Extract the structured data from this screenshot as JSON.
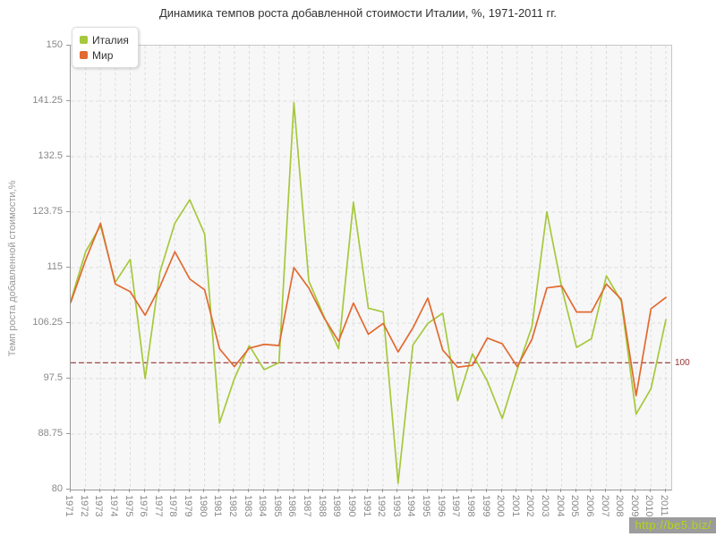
{
  "watermark": "http://be5.biz/",
  "chart_data": {
    "type": "line",
    "title": "Динамика темпов роста добавленной стоимости Италии, %, 1971-2011 гг.",
    "ylabel": "Темп роста добавленной стоимости,%",
    "xlabel": "",
    "ylim": [
      80,
      150
    ],
    "yticks": [
      80,
      88.75,
      97.5,
      106.25,
      115,
      123.75,
      132.5,
      141.25,
      150
    ],
    "grid": true,
    "legend_position": "top-left",
    "grid_color": "#dcdcdc",
    "x": [
      1971,
      1972,
      1973,
      1974,
      1975,
      1976,
      1977,
      1978,
      1979,
      1980,
      1981,
      1982,
      1983,
      1984,
      1985,
      1986,
      1987,
      1988,
      1989,
      1990,
      1991,
      1992,
      1993,
      1994,
      1995,
      1996,
      1997,
      1998,
      1999,
      2000,
      2001,
      2002,
      2003,
      2004,
      2005,
      2006,
      2007,
      2008,
      2009,
      2010,
      2011
    ],
    "series": [
      {
        "name": "Италия",
        "color": "#a6c83c",
        "values": [
          109.7,
          117.5,
          121.6,
          112.7,
          116.3,
          97.5,
          114.3,
          122.0,
          125.7,
          120.3,
          90.5,
          97.5,
          102.7,
          98.9,
          100.0,
          141.0,
          112.9,
          107.4,
          102.2,
          125.3,
          108.6,
          108.0,
          81.0,
          102.8,
          106.2,
          107.8,
          94.0,
          101.4,
          97.1,
          91.2,
          98.9,
          105.7,
          123.8,
          111.8,
          102.4,
          103.8,
          113.7,
          109.7,
          91.9,
          95.9,
          106.8
        ]
      },
      {
        "name": "Мир",
        "color": "#e2692f",
        "values": [
          109.5,
          116.2,
          122.0,
          112.4,
          111.2,
          107.5,
          112.0,
          117.5,
          113.2,
          111.5,
          102.2,
          99.4,
          102.3,
          102.9,
          102.7,
          115.0,
          111.8,
          107.2,
          103.4,
          109.4,
          104.5,
          106.2,
          101.7,
          105.5,
          110.2,
          102.0,
          99.3,
          99.6,
          103.9,
          103.0,
          99.4,
          103.7,
          111.8,
          112.1,
          108.0,
          108.0,
          112.4,
          110.0,
          94.8,
          108.5,
          110.3
        ]
      }
    ],
    "reference_line": {
      "value": 100,
      "label": "100",
      "color": "#993333"
    }
  }
}
